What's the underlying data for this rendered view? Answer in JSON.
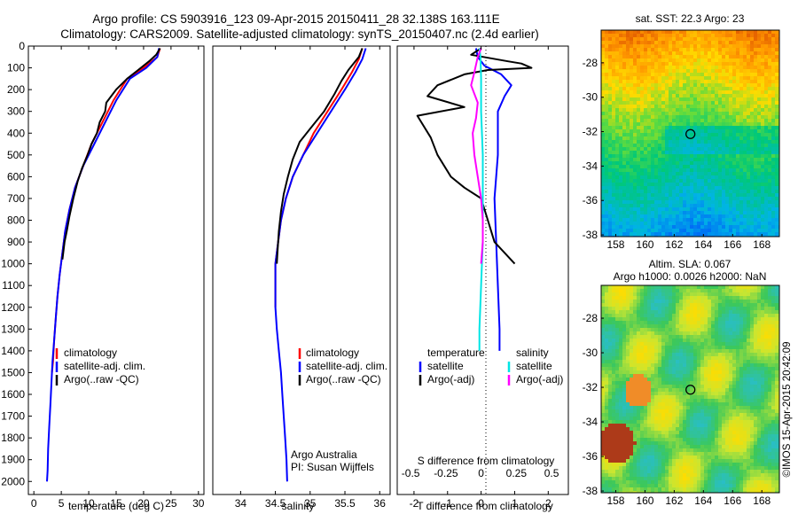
{
  "header": {
    "line1": "Argo profile: CS 5903916_123 09-Apr-2015 20150411_28 32.138S 163.111E",
    "line2": "Climatology: CARS2009. Satellite-adjusted climatology: synTS_20150407.nc (2.4d earlier)"
  },
  "credit": "©IMOS 15-Apr-2015 20:42:09",
  "colors": {
    "climatology": "#ff0000",
    "satellite": "#0000ff",
    "argo": "#000000",
    "salinity_sat": "#00e5e5",
    "salinity_argo": "#ff00ff"
  },
  "chart_data": [
    {
      "id": "temperature",
      "type": "line",
      "xlabel": "temperature (deg C)",
      "ylabel": "",
      "xlim": [
        -1,
        31
      ],
      "ylim": [
        2060,
        0
      ],
      "xticks": [
        "0",
        "5",
        "10",
        "15",
        "20",
        "25",
        "30"
      ],
      "yticks": [
        "0",
        "100",
        "200",
        "300",
        "400",
        "500",
        "600",
        "700",
        "800",
        "900",
        "1000",
        "1100",
        "1200",
        "1300",
        "1400",
        "1500",
        "1600",
        "1700",
        "1800",
        "1900",
        "2000"
      ],
      "legend": [
        "climatology",
        "satellite-adj. clim.",
        "Argo(..raw -QC)"
      ],
      "series": [
        {
          "name": "climatology",
          "color": "#ff0000",
          "points": [
            [
              23,
              10
            ],
            [
              22.5,
              50
            ],
            [
              20,
              100
            ],
            [
              17,
              150
            ],
            [
              14.5,
              250
            ],
            [
              12.5,
              350
            ],
            [
              10.5,
              450
            ],
            [
              9,
              550
            ],
            [
              7.5,
              650
            ],
            [
              6.5,
              750
            ],
            [
              5.7,
              850
            ],
            [
              5.2,
              950
            ],
            [
              4.7,
              1050
            ],
            [
              4.3,
              1150
            ],
            [
              4,
              1250
            ],
            [
              3.7,
              1350
            ],
            [
              3.5,
              1450
            ],
            [
              3.3,
              1500
            ]
          ]
        },
        {
          "name": "satellite-adj. clim.",
          "color": "#0000ff",
          "points": [
            [
              22.8,
              10
            ],
            [
              22.5,
              50
            ],
            [
              20.5,
              100
            ],
            [
              17.5,
              150
            ],
            [
              15,
              250
            ],
            [
              13,
              350
            ],
            [
              11,
              450
            ],
            [
              9,
              550
            ],
            [
              7.5,
              650
            ],
            [
              6.5,
              750
            ],
            [
              5.7,
              850
            ],
            [
              5.2,
              950
            ],
            [
              4.7,
              1050
            ],
            [
              4.3,
              1150
            ],
            [
              4,
              1250
            ],
            [
              3.7,
              1350
            ],
            [
              3.4,
              1450
            ],
            [
              3.2,
              1550
            ],
            [
              3,
              1650
            ],
            [
              2.8,
              1750
            ],
            [
              2.6,
              1850
            ],
            [
              2.5,
              1950
            ],
            [
              2.4,
              2000
            ]
          ]
        },
        {
          "name": "Argo(..raw -QC)",
          "color": "#000000",
          "points": [
            [
              23,
              10
            ],
            [
              22.3,
              40
            ],
            [
              21,
              70
            ],
            [
              19,
              110
            ],
            [
              17,
              150
            ],
            [
              15,
              200
            ],
            [
              13.2,
              260
            ],
            [
              13,
              300
            ],
            [
              12,
              350
            ],
            [
              11.5,
              400
            ],
            [
              10.5,
              450
            ],
            [
              9.8,
              500
            ],
            [
              8.8,
              560
            ],
            [
              8,
              620
            ],
            [
              7.2,
              700
            ],
            [
              6.5,
              780
            ],
            [
              6,
              850
            ],
            [
              5.6,
              900
            ],
            [
              5.2,
              980
            ]
          ]
        }
      ]
    },
    {
      "id": "salinity",
      "type": "line",
      "xlabel": "salinity",
      "ylabel": "",
      "xlim": [
        33.6,
        36.15
      ],
      "ylim": [
        2060,
        0
      ],
      "xticks": [
        "34",
        "34.5",
        "35",
        "35.5",
        "36"
      ],
      "legend": [
        "climatology",
        "satellite-adj. clim.",
        "Argo(..raw -QC)"
      ],
      "annotation": [
        "Argo Australia",
        "PI: Susan Wijffels"
      ],
      "series": [
        {
          "name": "climatology",
          "color": "#ff0000",
          "points": [
            [
              35.75,
              10
            ],
            [
              35.7,
              60
            ],
            [
              35.6,
              120
            ],
            [
              35.45,
              200
            ],
            [
              35.25,
              300
            ],
            [
              35.05,
              400
            ],
            [
              34.9,
              500
            ],
            [
              34.75,
              600
            ],
            [
              34.65,
              700
            ],
            [
              34.58,
              800
            ],
            [
              34.54,
              900
            ],
            [
              34.5,
              1000
            ],
            [
              34.5,
              1100
            ],
            [
              34.5,
              1200
            ]
          ]
        },
        {
          "name": "satellite-adj. clim.",
          "color": "#0000ff",
          "points": [
            [
              35.8,
              10
            ],
            [
              35.75,
              60
            ],
            [
              35.65,
              120
            ],
            [
              35.5,
              200
            ],
            [
              35.3,
              300
            ],
            [
              35.1,
              400
            ],
            [
              34.9,
              500
            ],
            [
              34.75,
              600
            ],
            [
              34.65,
              700
            ],
            [
              34.58,
              800
            ],
            [
              34.54,
              900
            ],
            [
              34.5,
              1000
            ],
            [
              34.5,
              1100
            ],
            [
              34.5,
              1200
            ],
            [
              34.52,
              1300
            ],
            [
              34.55,
              1400
            ],
            [
              34.58,
              1500
            ],
            [
              34.6,
              1600
            ],
            [
              34.62,
              1700
            ],
            [
              34.64,
              1800
            ],
            [
              34.66,
              1900
            ],
            [
              34.67,
              2000
            ]
          ]
        },
        {
          "name": "Argo(..raw -QC)",
          "color": "#000000",
          "points": [
            [
              35.75,
              10
            ],
            [
              35.7,
              50
            ],
            [
              35.55,
              110
            ],
            [
              35.45,
              160
            ],
            [
              35.35,
              220
            ],
            [
              35.2,
              300
            ],
            [
              35,
              380
            ],
            [
              34.85,
              440
            ],
            [
              34.75,
              520
            ],
            [
              34.68,
              600
            ],
            [
              34.62,
              680
            ],
            [
              34.58,
              760
            ],
            [
              34.55,
              850
            ],
            [
              34.53,
              950
            ],
            [
              34.52,
              1000
            ]
          ]
        }
      ]
    },
    {
      "id": "differences",
      "type": "line",
      "xlabel": "T difference from climatology",
      "ylabel": "",
      "xlim": [
        -2.5,
        2.6
      ],
      "ylim": [
        2060,
        0
      ],
      "xticks": [
        "-2",
        "-1",
        "0",
        "1",
        "2"
      ],
      "top_axis_label": "S difference from climatology",
      "top_ticks": [
        "-0.5",
        "-0.25",
        "0",
        "0.25",
        "0.5"
      ],
      "legend_temperature": {
        "title": "temperature",
        "items": [
          "satellite",
          "Argo(-adj)"
        ]
      },
      "legend_salinity": {
        "title": "salinity",
        "items": [
          "satellite",
          "Argo(-adj)"
        ]
      },
      "series": [
        {
          "name": "temperature satellite",
          "color": "#0000ff",
          "points": [
            [
              -0.15,
              10
            ],
            [
              -0.1,
              50
            ],
            [
              0.1,
              90
            ],
            [
              0.6,
              130
            ],
            [
              0.9,
              180
            ],
            [
              0.7,
              230
            ],
            [
              0.5,
              300
            ],
            [
              0.5,
              400
            ],
            [
              0.5,
              500
            ],
            [
              0.4,
              700
            ],
            [
              0.45,
              900
            ],
            [
              0.5,
              1100
            ],
            [
              0.55,
              1300
            ],
            [
              0.55,
              1400
            ]
          ]
        },
        {
          "name": "temperature Argo(-adj)",
          "color": "#000000",
          "points": [
            [
              0,
              10
            ],
            [
              -0.3,
              40
            ],
            [
              0.8,
              70
            ],
            [
              1.2,
              80
            ],
            [
              1.5,
              100
            ],
            [
              0.2,
              110
            ],
            [
              -0.5,
              130
            ],
            [
              -1.3,
              180
            ],
            [
              -1.6,
              230
            ],
            [
              -0.5,
              280
            ],
            [
              -1.9,
              320
            ],
            [
              -1.5,
              420
            ],
            [
              -1.3,
              500
            ],
            [
              -0.9,
              600
            ],
            [
              -0.5,
              650
            ],
            [
              0,
              700
            ],
            [
              0.2,
              800
            ],
            [
              0.4,
              900
            ],
            [
              0.7,
              950
            ],
            [
              1,
              1000
            ]
          ]
        },
        {
          "name": "salinity satellite",
          "color": "#00e5e5",
          "points": [
            [
              -0.05,
              10
            ],
            [
              -0.02,
              50
            ],
            [
              0,
              150
            ],
            [
              0,
              300
            ],
            [
              0.05,
              500
            ],
            [
              0.05,
              700
            ],
            [
              0.05,
              900
            ],
            [
              0,
              1100
            ],
            [
              -0.05,
              1300
            ],
            [
              -0.05,
              1400
            ]
          ]
        },
        {
          "name": "salinity Argo(-adj)",
          "color": "#ff00ff",
          "points": [
            [
              0,
              10
            ],
            [
              -0.1,
              50
            ],
            [
              -0.2,
              120
            ],
            [
              -0.3,
              180
            ],
            [
              -0.1,
              260
            ],
            [
              -0.15,
              330
            ],
            [
              -0.25,
              400
            ],
            [
              -0.2,
              500
            ],
            [
              -0.1,
              600
            ],
            [
              0,
              700
            ],
            [
              0.05,
              800
            ],
            [
              0.05,
              900
            ],
            [
              0,
              1000
            ]
          ]
        }
      ]
    },
    {
      "id": "sst-map",
      "type": "heatmap",
      "title": "sat. SST: 22.3  Argo: 23",
      "xlim": [
        157,
        169.2
      ],
      "ylim": [
        -38.1,
        -26.1
      ],
      "xticks": [
        "158",
        "160",
        "162",
        "164",
        "166",
        "168"
      ],
      "yticks": [
        "-28",
        "-30",
        "-32",
        "-34",
        "-36",
        "-38"
      ],
      "marker": {
        "lon": 163.111,
        "lat": -32.138
      }
    },
    {
      "id": "sla-map",
      "type": "heatmap",
      "title_lines": [
        "Altim. SLA: 0.067",
        "Argo h1000: 0.0026 h2000: NaN"
      ],
      "xlim": [
        157,
        169.2
      ],
      "ylim": [
        -38.1,
        -26.1
      ],
      "xticks": [
        "158",
        "160",
        "162",
        "164",
        "166",
        "168"
      ],
      "yticks": [
        "-28",
        "-30",
        "-32",
        "-34",
        "-36",
        "-38"
      ],
      "marker": {
        "lon": 163.111,
        "lat": -32.138
      }
    }
  ]
}
